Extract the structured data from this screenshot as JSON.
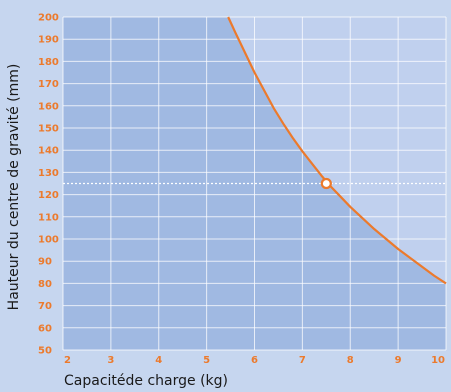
{
  "chart_data": {
    "type": "line",
    "xlabel": "Capacitéde charge (kg)",
    "ylabel": "Hauteur du centre de gravité (mm)",
    "xlim": [
      2,
      10
    ],
    "ylim": [
      50,
      200
    ],
    "x_ticks": [
      "2",
      "3",
      "4",
      "5",
      "6",
      "7",
      "8",
      "9",
      "10"
    ],
    "y_ticks": [
      "50",
      "60",
      "70",
      "80",
      "90",
      "100",
      "110",
      "120",
      "130",
      "140",
      "150",
      "160",
      "170",
      "180",
      "190",
      "200"
    ],
    "grid": true,
    "series": [
      {
        "x": [
          5.45,
          5.6,
          5.8,
          6.0,
          6.2,
          6.4,
          6.6,
          6.8,
          7.0,
          7.2,
          7.4,
          7.6,
          7.8,
          8.0,
          8.25,
          8.5,
          8.75,
          9.0,
          9.25,
          9.5,
          9.75,
          10.0
        ],
        "y": [
          200,
          193,
          184,
          175,
          167,
          159,
          152,
          145.5,
          139.5,
          134,
          128.5,
          123.5,
          119,
          114.5,
          109.5,
          104.5,
          100,
          95.5,
          91.5,
          87.5,
          83.5,
          80
        ],
        "color": "#ec7a2c"
      }
    ],
    "highlight": {
      "x": 7.5,
      "y": 125
    },
    "colors": {
      "page_background": "#c6d6ef",
      "safe_region": "#a0b9e2",
      "unsafe_region": "#c0d0ee",
      "curve": "#ec7a2c",
      "grid": "#ffffff",
      "tick_label": "#ec7a2c"
    }
  }
}
